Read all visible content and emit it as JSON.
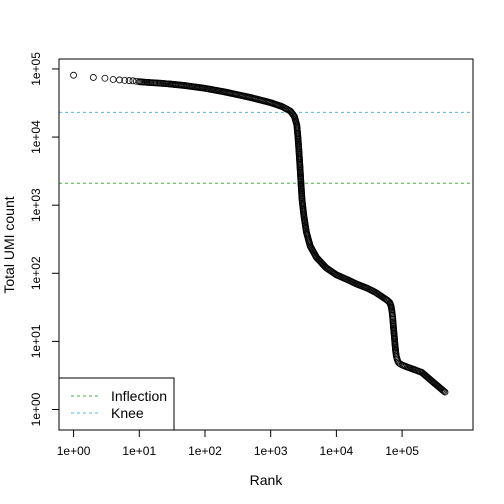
{
  "chart_data": {
    "type": "scatter",
    "xlabel": "Rank",
    "ylabel": "Total UMI count",
    "xscale": "log",
    "yscale": "log",
    "xlim": [
      0.6,
      1200000
    ],
    "ylim": [
      0.5,
      140000
    ],
    "xticks": [
      "1e+00",
      "1e+01",
      "1e+02",
      "1e+03",
      "1e+04",
      "1e+05"
    ],
    "xtick_values": [
      1,
      10,
      100,
      1000,
      10000,
      100000
    ],
    "yticks": [
      "1e+00",
      "1e+01",
      "1e+02",
      "1e+03",
      "1e+04",
      "1e+05"
    ],
    "ytick_values": [
      1,
      10,
      100,
      1000,
      10000,
      100000
    ],
    "points": {
      "rank": [
        1,
        2,
        3,
        4,
        5,
        6,
        7,
        8,
        9,
        10,
        12,
        15,
        20,
        30,
        50,
        100,
        200,
        500,
        1000,
        1500,
        2000,
        2300,
        2500,
        2600,
        2700,
        2800,
        2900,
        3000,
        3200,
        3500,
        4000,
        5000,
        7000,
        10000,
        15000,
        20000,
        30000,
        40000,
        50000,
        60000,
        65000,
        68000,
        70000,
        72000,
        74000,
        76000,
        78000,
        80000,
        82000,
        84000,
        87000,
        90000,
        100000,
        120000,
        160000,
        200000,
        300000,
        450000
      ],
      "count": [
        81000,
        75000,
        73000,
        70000,
        69000,
        68000,
        67500,
        67000,
        66000,
        65000,
        64000,
        63000,
        62000,
        60000,
        57000,
        52000,
        46000,
        38000,
        32000,
        28000,
        24000,
        20000,
        15000,
        10000,
        6000,
        3500,
        2000,
        1200,
        700,
        400,
        250,
        170,
        120,
        95,
        80,
        70,
        60,
        52,
        45,
        40,
        37,
        33,
        28,
        22,
        16,
        12,
        9,
        7,
        6,
        5.5,
        5,
        4.8,
        4.5,
        4.2,
        3.8,
        3.5,
        2.5,
        1.8
      ],
      "extra_points": {
        "rank": [
          120000,
          160000,
          220000,
          300000,
          450000
        ],
        "count": [
          5,
          4,
          3,
          2,
          1
        ]
      }
    },
    "hlines": [
      {
        "name": "Inflection",
        "y": 2100,
        "color": "#4daf4a",
        "style": "dashed"
      },
      {
        "name": "Knee",
        "y": 23000,
        "color": "#56b4e9",
        "style": "dashed"
      }
    ],
    "legend": {
      "position": "bottom-left",
      "entries": [
        "Inflection",
        "Knee"
      ]
    },
    "grid": false,
    "marker": "open-circle"
  }
}
